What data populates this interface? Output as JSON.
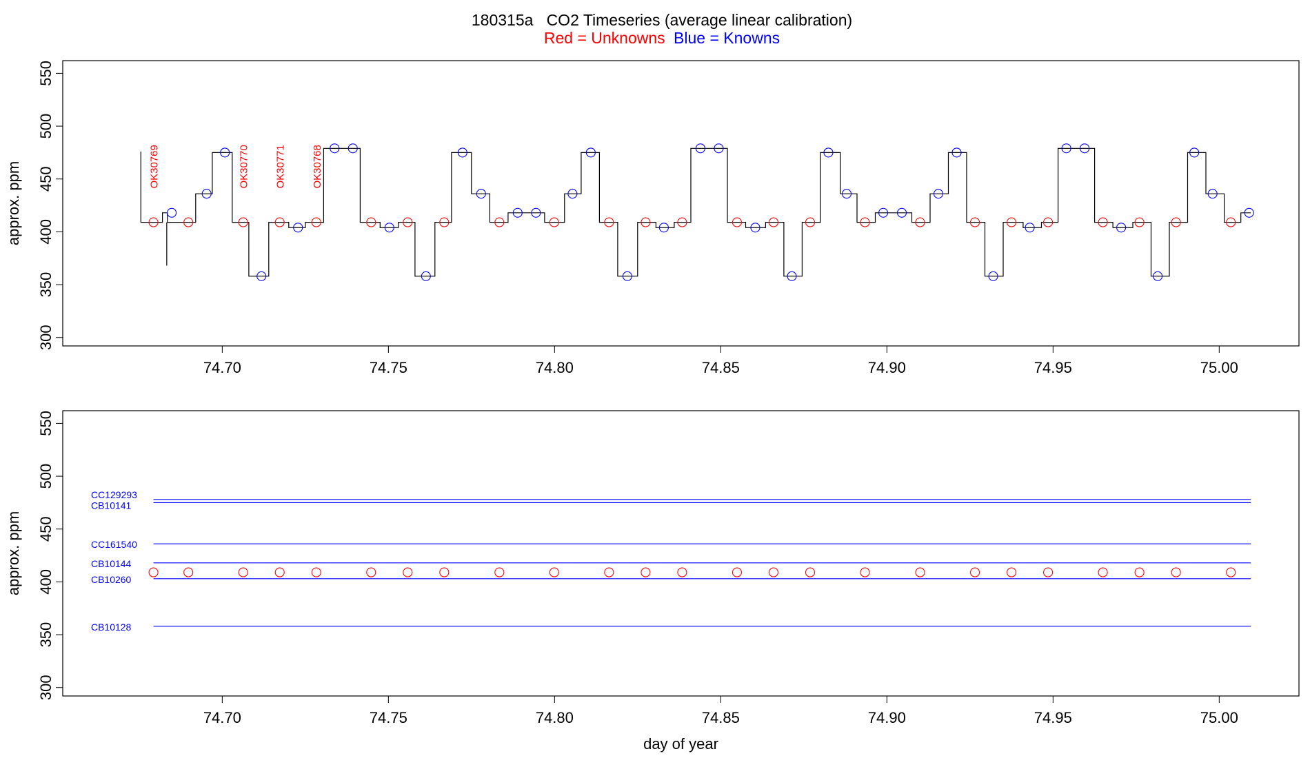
{
  "title": "180315a   CO2 Timeseries (average linear calibration)",
  "subtitle": {
    "red": "Red = Unknowns",
    "blue": "Blue = Knowns"
  },
  "colors": {
    "unknown": "#ff0000",
    "known": "#0000ff",
    "trace": "#000000"
  },
  "chart_data": [
    {
      "type": "line",
      "title": "",
      "xlabel": "",
      "ylabel": "approx. ppm",
      "xlim": [
        74.652,
        75.024
      ],
      "ylim": [
        292,
        562
      ],
      "xticks": [
        74.7,
        74.75,
        74.8,
        74.85,
        74.9,
        74.95,
        75.0
      ],
      "xtick_labels": [
        "74.70",
        "74.75",
        "74.80",
        "74.85",
        "74.90",
        "74.95",
        "75.00"
      ],
      "yticks": [
        300,
        350,
        400,
        450,
        500,
        550
      ],
      "ytick_labels": [
        "300",
        "350",
        "400",
        "450",
        "500",
        "550"
      ],
      "trace": {
        "name": "",
        "segments": [
          {
            "x0": 74.6755,
            "x1": 74.682,
            "y": 409
          },
          {
            "x0": 74.682,
            "x1": 74.6835,
            "y": 418
          },
          {
            "x0": 74.6835,
            "x1": 74.692,
            "y": 409
          },
          {
            "x0": 74.692,
            "x1": 74.697,
            "y": 436
          },
          {
            "x0": 74.697,
            "x1": 74.703,
            "y": 475
          },
          {
            "x0": 74.703,
            "x1": 74.708,
            "y": 409
          },
          {
            "x0": 74.708,
            "x1": 74.714,
            "y": 358
          },
          {
            "x0": 74.714,
            "x1": 74.72,
            "y": 409
          },
          {
            "x0": 74.72,
            "x1": 74.725,
            "y": 404
          },
          {
            "x0": 74.725,
            "x1": 74.7305,
            "y": 409
          },
          {
            "x0": 74.7305,
            "x1": 74.7415,
            "y": 479
          },
          {
            "x0": 74.7415,
            "x1": 74.7475,
            "y": 409
          },
          {
            "x0": 74.7475,
            "x1": 74.753,
            "y": 404
          },
          {
            "x0": 74.753,
            "x1": 74.758,
            "y": 409
          },
          {
            "x0": 74.758,
            "x1": 74.764,
            "y": 358
          },
          {
            "x0": 74.764,
            "x1": 74.769,
            "y": 409
          },
          {
            "x0": 74.769,
            "x1": 74.775,
            "y": 475
          },
          {
            "x0": 74.775,
            "x1": 74.7805,
            "y": 436
          },
          {
            "x0": 74.7805,
            "x1": 74.786,
            "y": 409
          },
          {
            "x0": 74.786,
            "x1": 74.797,
            "y": 418
          },
          {
            "x0": 74.797,
            "x1": 74.803,
            "y": 409
          },
          {
            "x0": 74.803,
            "x1": 74.808,
            "y": 436
          },
          {
            "x0": 74.808,
            "x1": 74.8135,
            "y": 475
          },
          {
            "x0": 74.8135,
            "x1": 74.819,
            "y": 409
          },
          {
            "x0": 74.819,
            "x1": 74.825,
            "y": 358
          },
          {
            "x0": 74.825,
            "x1": 74.8305,
            "y": 409
          },
          {
            "x0": 74.8305,
            "x1": 74.836,
            "y": 404
          },
          {
            "x0": 74.836,
            "x1": 74.841,
            "y": 409
          },
          {
            "x0": 74.841,
            "x1": 74.852,
            "y": 479
          },
          {
            "x0": 74.852,
            "x1": 74.8575,
            "y": 409
          },
          {
            "x0": 74.8575,
            "x1": 74.8635,
            "y": 404
          },
          {
            "x0": 74.8635,
            "x1": 74.869,
            "y": 409
          },
          {
            "x0": 74.869,
            "x1": 74.8745,
            "y": 358
          },
          {
            "x0": 74.8745,
            "x1": 74.88,
            "y": 409
          },
          {
            "x0": 74.88,
            "x1": 74.886,
            "y": 475
          },
          {
            "x0": 74.886,
            "x1": 74.891,
            "y": 436
          },
          {
            "x0": 74.891,
            "x1": 74.8965,
            "y": 409
          },
          {
            "x0": 74.8965,
            "x1": 74.9075,
            "y": 418
          },
          {
            "x0": 74.9075,
            "x1": 74.913,
            "y": 409
          },
          {
            "x0": 74.913,
            "x1": 74.9185,
            "y": 436
          },
          {
            "x0": 74.9185,
            "x1": 74.924,
            "y": 475
          },
          {
            "x0": 74.924,
            "x1": 74.9295,
            "y": 409
          },
          {
            "x0": 74.9295,
            "x1": 74.935,
            "y": 358
          },
          {
            "x0": 74.935,
            "x1": 74.941,
            "y": 409
          },
          {
            "x0": 74.941,
            "x1": 74.9465,
            "y": 404
          },
          {
            "x0": 74.9465,
            "x1": 74.9515,
            "y": 409
          },
          {
            "x0": 74.9515,
            "x1": 74.9625,
            "y": 479
          },
          {
            "x0": 74.9625,
            "x1": 74.968,
            "y": 409
          },
          {
            "x0": 74.968,
            "x1": 74.974,
            "y": 404
          },
          {
            "x0": 74.974,
            "x1": 74.9795,
            "y": 409
          },
          {
            "x0": 74.9795,
            "x1": 74.985,
            "y": 358
          },
          {
            "x0": 74.985,
            "x1": 74.9905,
            "y": 409
          },
          {
            "x0": 74.9905,
            "x1": 74.996,
            "y": 475
          },
          {
            "x0": 74.996,
            "x1": 75.0015,
            "y": 436
          },
          {
            "x0": 75.0015,
            "x1": 75.0065,
            "y": 409
          },
          {
            "x0": 75.0065,
            "x1": 75.0095,
            "y": 418
          }
        ],
        "start_spike": {
          "x": 74.6755,
          "y_top": 476
        },
        "dip_spike": {
          "x": 74.6833,
          "y_bottom": 368
        }
      },
      "unknowns": {
        "name": "Unknowns",
        "points": [
          {
            "x": 74.6793,
            "y": 409
          },
          {
            "x": 74.6898,
            "y": 409
          },
          {
            "x": 74.7063,
            "y": 409
          },
          {
            "x": 74.7173,
            "y": 409
          },
          {
            "x": 74.7283,
            "y": 409
          },
          {
            "x": 74.7448,
            "y": 409
          },
          {
            "x": 74.7558,
            "y": 409
          },
          {
            "x": 74.7668,
            "y": 409
          },
          {
            "x": 74.7834,
            "y": 409
          },
          {
            "x": 74.7999,
            "y": 409
          },
          {
            "x": 74.8164,
            "y": 409
          },
          {
            "x": 74.8274,
            "y": 409
          },
          {
            "x": 74.8384,
            "y": 409
          },
          {
            "x": 74.8549,
            "y": 409
          },
          {
            "x": 74.8659,
            "y": 409
          },
          {
            "x": 74.8769,
            "y": 409
          },
          {
            "x": 74.8934,
            "y": 409
          },
          {
            "x": 74.91,
            "y": 409
          },
          {
            "x": 74.9265,
            "y": 409
          },
          {
            "x": 74.9375,
            "y": 409
          },
          {
            "x": 74.9485,
            "y": 409
          },
          {
            "x": 74.965,
            "y": 409
          },
          {
            "x": 74.976,
            "y": 409
          },
          {
            "x": 74.987,
            "y": 409
          },
          {
            "x": 75.0035,
            "y": 409
          }
        ]
      },
      "knowns": {
        "name": "Knowns",
        "points": [
          {
            "x": 74.6848,
            "y": 418
          },
          {
            "x": 74.6953,
            "y": 436
          },
          {
            "x": 74.7008,
            "y": 475
          },
          {
            "x": 74.7118,
            "y": 358
          },
          {
            "x": 74.7228,
            "y": 404
          },
          {
            "x": 74.7338,
            "y": 479
          },
          {
            "x": 74.7393,
            "y": 479
          },
          {
            "x": 74.7503,
            "y": 404
          },
          {
            "x": 74.7613,
            "y": 358
          },
          {
            "x": 74.7723,
            "y": 475
          },
          {
            "x": 74.7779,
            "y": 436
          },
          {
            "x": 74.7889,
            "y": 418
          },
          {
            "x": 74.7944,
            "y": 418
          },
          {
            "x": 74.8054,
            "y": 436
          },
          {
            "x": 74.8109,
            "y": 475
          },
          {
            "x": 74.8219,
            "y": 358
          },
          {
            "x": 74.8329,
            "y": 404
          },
          {
            "x": 74.8439,
            "y": 479
          },
          {
            "x": 74.8494,
            "y": 479
          },
          {
            "x": 74.8604,
            "y": 404
          },
          {
            "x": 74.8714,
            "y": 358
          },
          {
            "x": 74.8824,
            "y": 475
          },
          {
            "x": 74.8879,
            "y": 436
          },
          {
            "x": 74.8989,
            "y": 418
          },
          {
            "x": 74.9045,
            "y": 418
          },
          {
            "x": 74.9155,
            "y": 436
          },
          {
            "x": 74.921,
            "y": 475
          },
          {
            "x": 74.932,
            "y": 358
          },
          {
            "x": 74.943,
            "y": 404
          },
          {
            "x": 74.954,
            "y": 479
          },
          {
            "x": 74.9595,
            "y": 479
          },
          {
            "x": 74.9705,
            "y": 404
          },
          {
            "x": 74.9815,
            "y": 358
          },
          {
            "x": 74.9925,
            "y": 475
          },
          {
            "x": 74.998,
            "y": 436
          },
          {
            "x": 75.009,
            "y": 418
          }
        ]
      },
      "annotations": [
        {
          "text": "OK30769",
          "x": 74.6793,
          "y": 441
        },
        {
          "text": "OK30770",
          "x": 74.7063,
          "y": 441
        },
        {
          "text": "OK30771",
          "x": 74.7173,
          "y": 441
        },
        {
          "text": "OK30768",
          "x": 74.7283,
          "y": 441
        }
      ]
    },
    {
      "type": "scatter",
      "title": "",
      "xlabel": "day of year",
      "ylabel": "approx. ppm",
      "xlim": [
        74.652,
        75.024
      ],
      "ylim": [
        292,
        562
      ],
      "xticks": [
        74.7,
        74.75,
        74.8,
        74.85,
        74.9,
        74.95,
        75.0
      ],
      "xtick_labels": [
        "74.70",
        "74.75",
        "74.80",
        "74.85",
        "74.90",
        "74.95",
        "75.00"
      ],
      "yticks": [
        300,
        350,
        400,
        450,
        500,
        550
      ],
      "ytick_labels": [
        "300",
        "350",
        "400",
        "450",
        "500",
        "550"
      ],
      "standards": [
        {
          "name": "CC129293",
          "value": 478,
          "x_start": 74.6793,
          "x_end": 75.0095
        },
        {
          "name": "CB10141",
          "value": 475,
          "x_start": 74.6793,
          "x_end": 75.0095
        },
        {
          "name": "CC161540",
          "value": 436,
          "x_start": 74.6793,
          "x_end": 75.0095
        },
        {
          "name": "CB10144",
          "value": 418,
          "x_start": 74.6793,
          "x_end": 75.0095
        },
        {
          "name": "CB10260",
          "value": 403,
          "x_start": 74.6793,
          "x_end": 75.0095
        },
        {
          "name": "CB10128",
          "value": 358,
          "x_start": 74.6793,
          "x_end": 75.0095
        }
      ],
      "standard_label_x": 74.6605,
      "unknowns": {
        "name": "Unknowns",
        "points": [
          {
            "x": 74.6793,
            "y": 409
          },
          {
            "x": 74.6898,
            "y": 409
          },
          {
            "x": 74.7063,
            "y": 409
          },
          {
            "x": 74.7173,
            "y": 409
          },
          {
            "x": 74.7283,
            "y": 409
          },
          {
            "x": 74.7448,
            "y": 409
          },
          {
            "x": 74.7558,
            "y": 409
          },
          {
            "x": 74.7668,
            "y": 409
          },
          {
            "x": 74.7834,
            "y": 409
          },
          {
            "x": 74.7999,
            "y": 409
          },
          {
            "x": 74.8164,
            "y": 409
          },
          {
            "x": 74.8274,
            "y": 409
          },
          {
            "x": 74.8384,
            "y": 409
          },
          {
            "x": 74.8549,
            "y": 409
          },
          {
            "x": 74.8659,
            "y": 409
          },
          {
            "x": 74.8769,
            "y": 409
          },
          {
            "x": 74.8934,
            "y": 409
          },
          {
            "x": 74.91,
            "y": 409
          },
          {
            "x": 74.9265,
            "y": 409
          },
          {
            "x": 74.9375,
            "y": 409
          },
          {
            "x": 74.9485,
            "y": 409
          },
          {
            "x": 74.965,
            "y": 409
          },
          {
            "x": 74.976,
            "y": 409
          },
          {
            "x": 74.987,
            "y": 409
          },
          {
            "x": 75.0035,
            "y": 409
          }
        ]
      }
    }
  ]
}
